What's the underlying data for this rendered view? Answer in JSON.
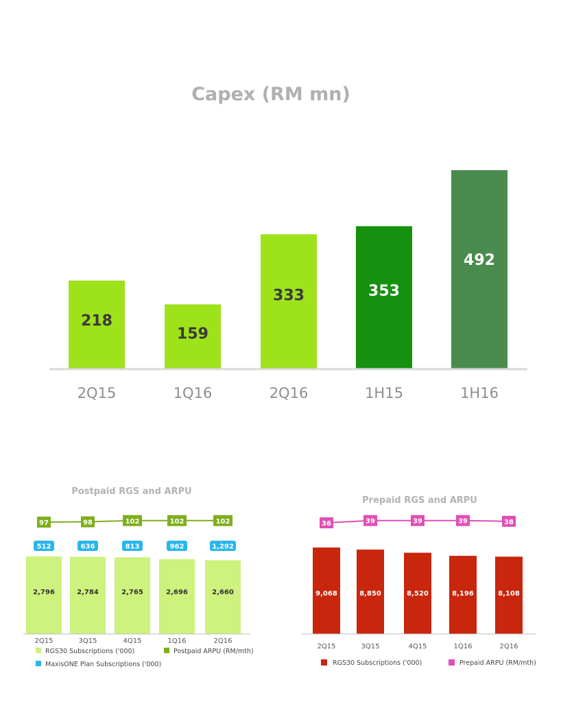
{
  "chart_data": [
    {
      "type": "bar",
      "title": "Capex (RM mn)",
      "categories": [
        "2Q15",
        "1Q16",
        "2Q16",
        "1H15",
        "1H16"
      ],
      "values": [
        218,
        159,
        333,
        353,
        492
      ],
      "bar_colors": [
        "#9ee21b",
        "#9ee21b",
        "#9ee21b",
        "#15910f",
        "#4a8c4f"
      ],
      "ylim": [
        0,
        520
      ],
      "grid": false
    },
    {
      "type": "bar",
      "title": "Postpaid RGS and ARPU",
      "categories": [
        "2Q15",
        "3Q15",
        "4Q15",
        "1Q16",
        "2Q16"
      ],
      "series": [
        {
          "name": "RGS30 Subscriptions ('000)",
          "type": "bar",
          "values": [
            2796,
            2784,
            2765,
            2696,
            2660
          ],
          "labels": [
            "2,796",
            "2,784",
            "2,765",
            "2,696",
            "2,660"
          ],
          "color": "#cdf27e"
        },
        {
          "name": "MaxisONE Plan Subscriptions ('000)",
          "type": "label",
          "values": [
            512,
            636,
            813,
            962,
            1292
          ],
          "labels": [
            "512",
            "636",
            "813",
            "962",
            "1,292"
          ],
          "color": "#29b6e8"
        },
        {
          "name": "Postpaid ARPU (RM/mth)",
          "type": "line",
          "values": [
            97,
            98,
            102,
            102,
            102
          ],
          "labels": [
            "97",
            "98",
            "102",
            "102",
            "102"
          ],
          "color": "#7fae1e"
        }
      ],
      "legend_position": "bottom"
    },
    {
      "type": "bar",
      "title": "Prepaid RGS and ARPU",
      "categories": [
        "2Q15",
        "3Q15",
        "4Q15",
        "1Q16",
        "2Q16"
      ],
      "series": [
        {
          "name": "RGS30 Subscriptions ('000)",
          "type": "bar",
          "values": [
            9068,
            8850,
            8520,
            8196,
            8108
          ],
          "labels": [
            "9,068",
            "8,850",
            "8,520",
            "8,196",
            "8,108"
          ],
          "color": "#c8260d"
        },
        {
          "name": "Prepaid ARPU (RM/mth)",
          "type": "line",
          "values": [
            36,
            39,
            39,
            39,
            38
          ],
          "labels": [
            "36",
            "39",
            "39",
            "39",
            "38"
          ],
          "color": "#e04fb3"
        }
      ],
      "legend_position": "bottom"
    }
  ]
}
